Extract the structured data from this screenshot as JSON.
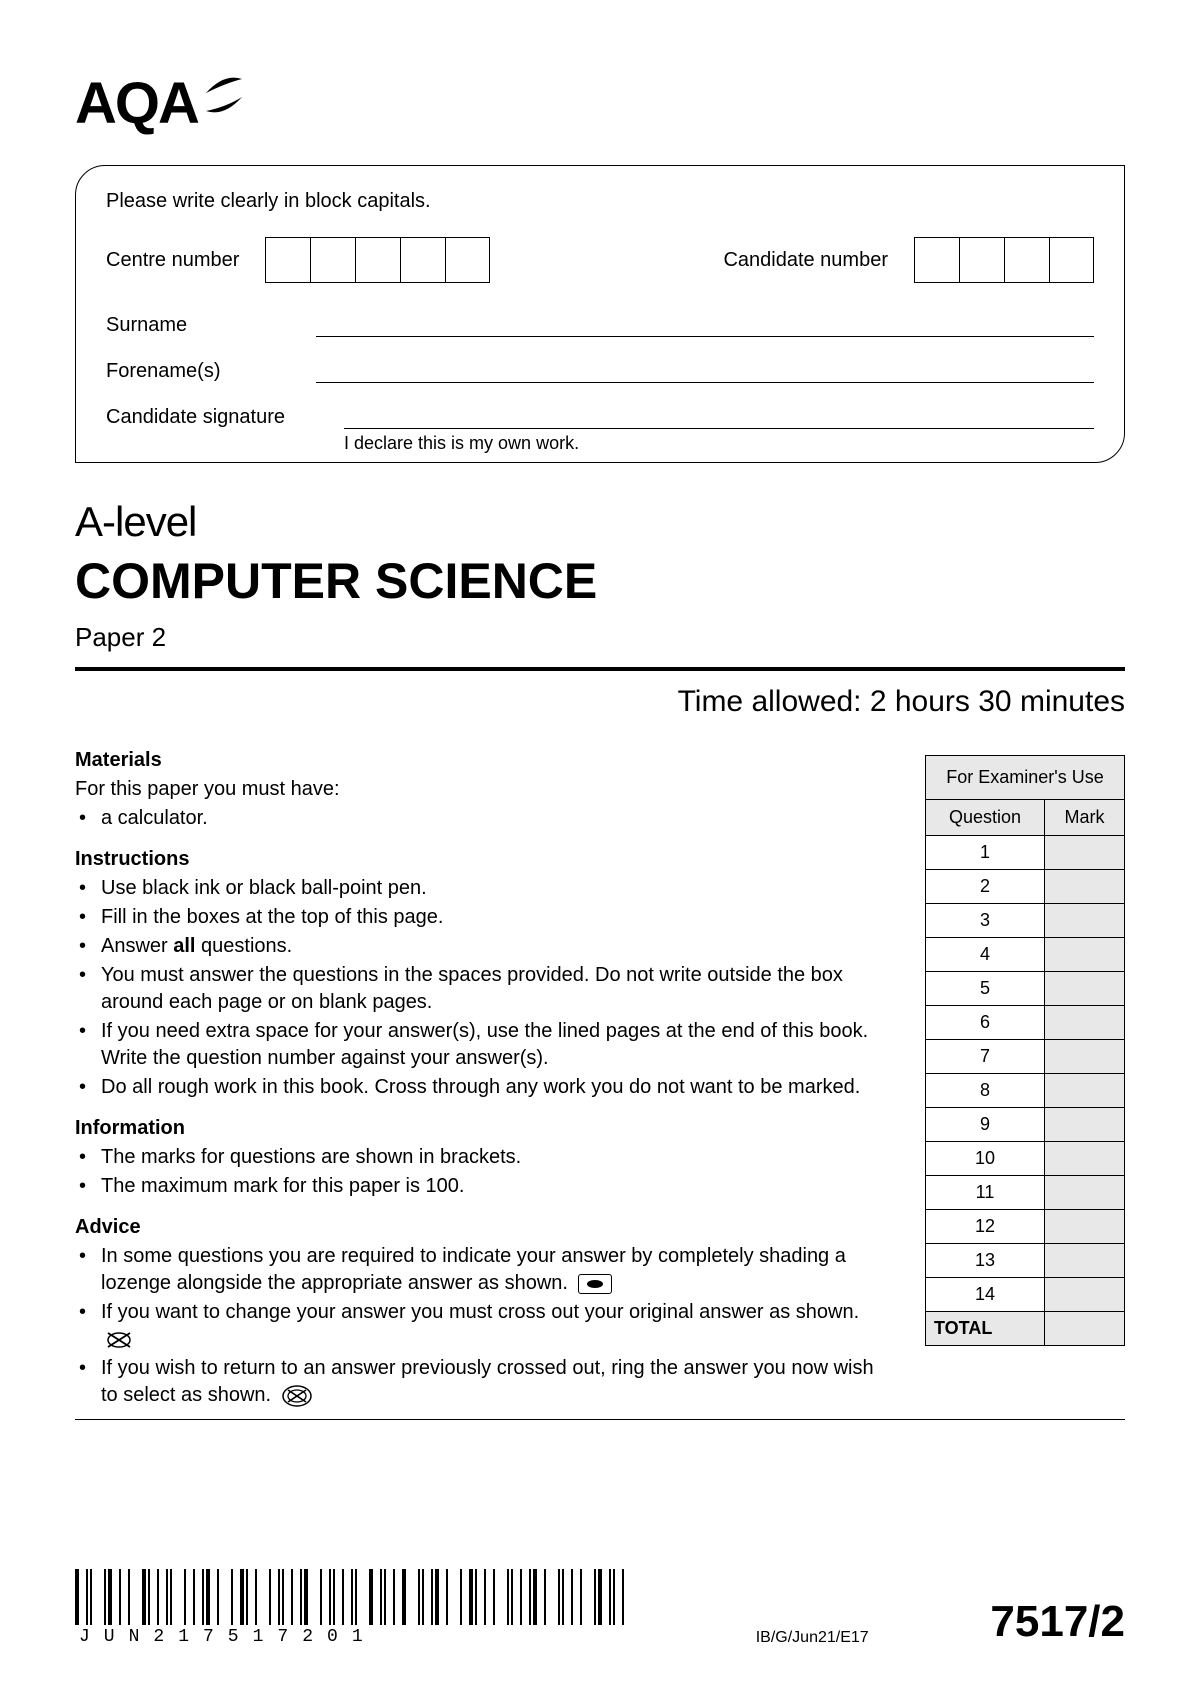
{
  "logo": {
    "text": "AQA"
  },
  "candidate_box": {
    "instruction": "Please write clearly in block capitals.",
    "centre_label": "Centre number",
    "centre_box_count": 5,
    "candidate_label": "Candidate number",
    "candidate_box_count": 4,
    "surname_label": "Surname",
    "forename_label": "Forename(s)",
    "signature_label": "Candidate signature",
    "declaration": "I declare this is my own work."
  },
  "titles": {
    "level": "A-level",
    "subject": "COMPUTER SCIENCE",
    "paper": "Paper 2"
  },
  "time_allowed": "Time allowed: 2 hours 30 minutes",
  "sections": {
    "materials": {
      "heading": "Materials",
      "intro": "For this paper you must have:",
      "items": [
        "a calculator."
      ]
    },
    "instructions": {
      "heading": "Instructions",
      "items": [
        "Use black ink or black ball-point pen.",
        "Fill in the boxes at the top of this page.",
        "Answer <b>all</b> questions.",
        "You must answer the questions in the spaces provided.  Do not write outside the box around each page or on blank pages.",
        "If you need extra space for your answer(s), use the lined pages at the end of this book.  Write the question number against your answer(s).",
        "Do all rough work in this book.  Cross through any work you do not want to be marked."
      ]
    },
    "information": {
      "heading": "Information",
      "items": [
        "The marks for questions are shown in brackets.",
        "The maximum mark for this paper is 100."
      ]
    },
    "advice": {
      "heading": "Advice",
      "items": [
        "In some questions you are required to indicate your answer by completely shading a lozenge alongside the appropriate answer as shown.",
        "If you want to change your answer you must cross out your original answer as shown.",
        "If you wish to return to an answer previously crossed out, ring the answer you now wish to select as shown."
      ]
    }
  },
  "marks_table": {
    "title": "For Examiner's Use",
    "head_q": "Question",
    "head_m": "Mark",
    "rows": [
      "1",
      "2",
      "3",
      "4",
      "5",
      "6",
      "7",
      "8",
      "9",
      "10",
      "11",
      "12",
      "13",
      "14"
    ],
    "total_label": "TOTAL"
  },
  "footer": {
    "barcode_text": "JUN217517201",
    "mid": "IB/G/Jun21/E17",
    "code": "7517/2"
  },
  "colors": {
    "background": "#ffffff",
    "text": "#000000",
    "shade": "#e8e8e8"
  }
}
